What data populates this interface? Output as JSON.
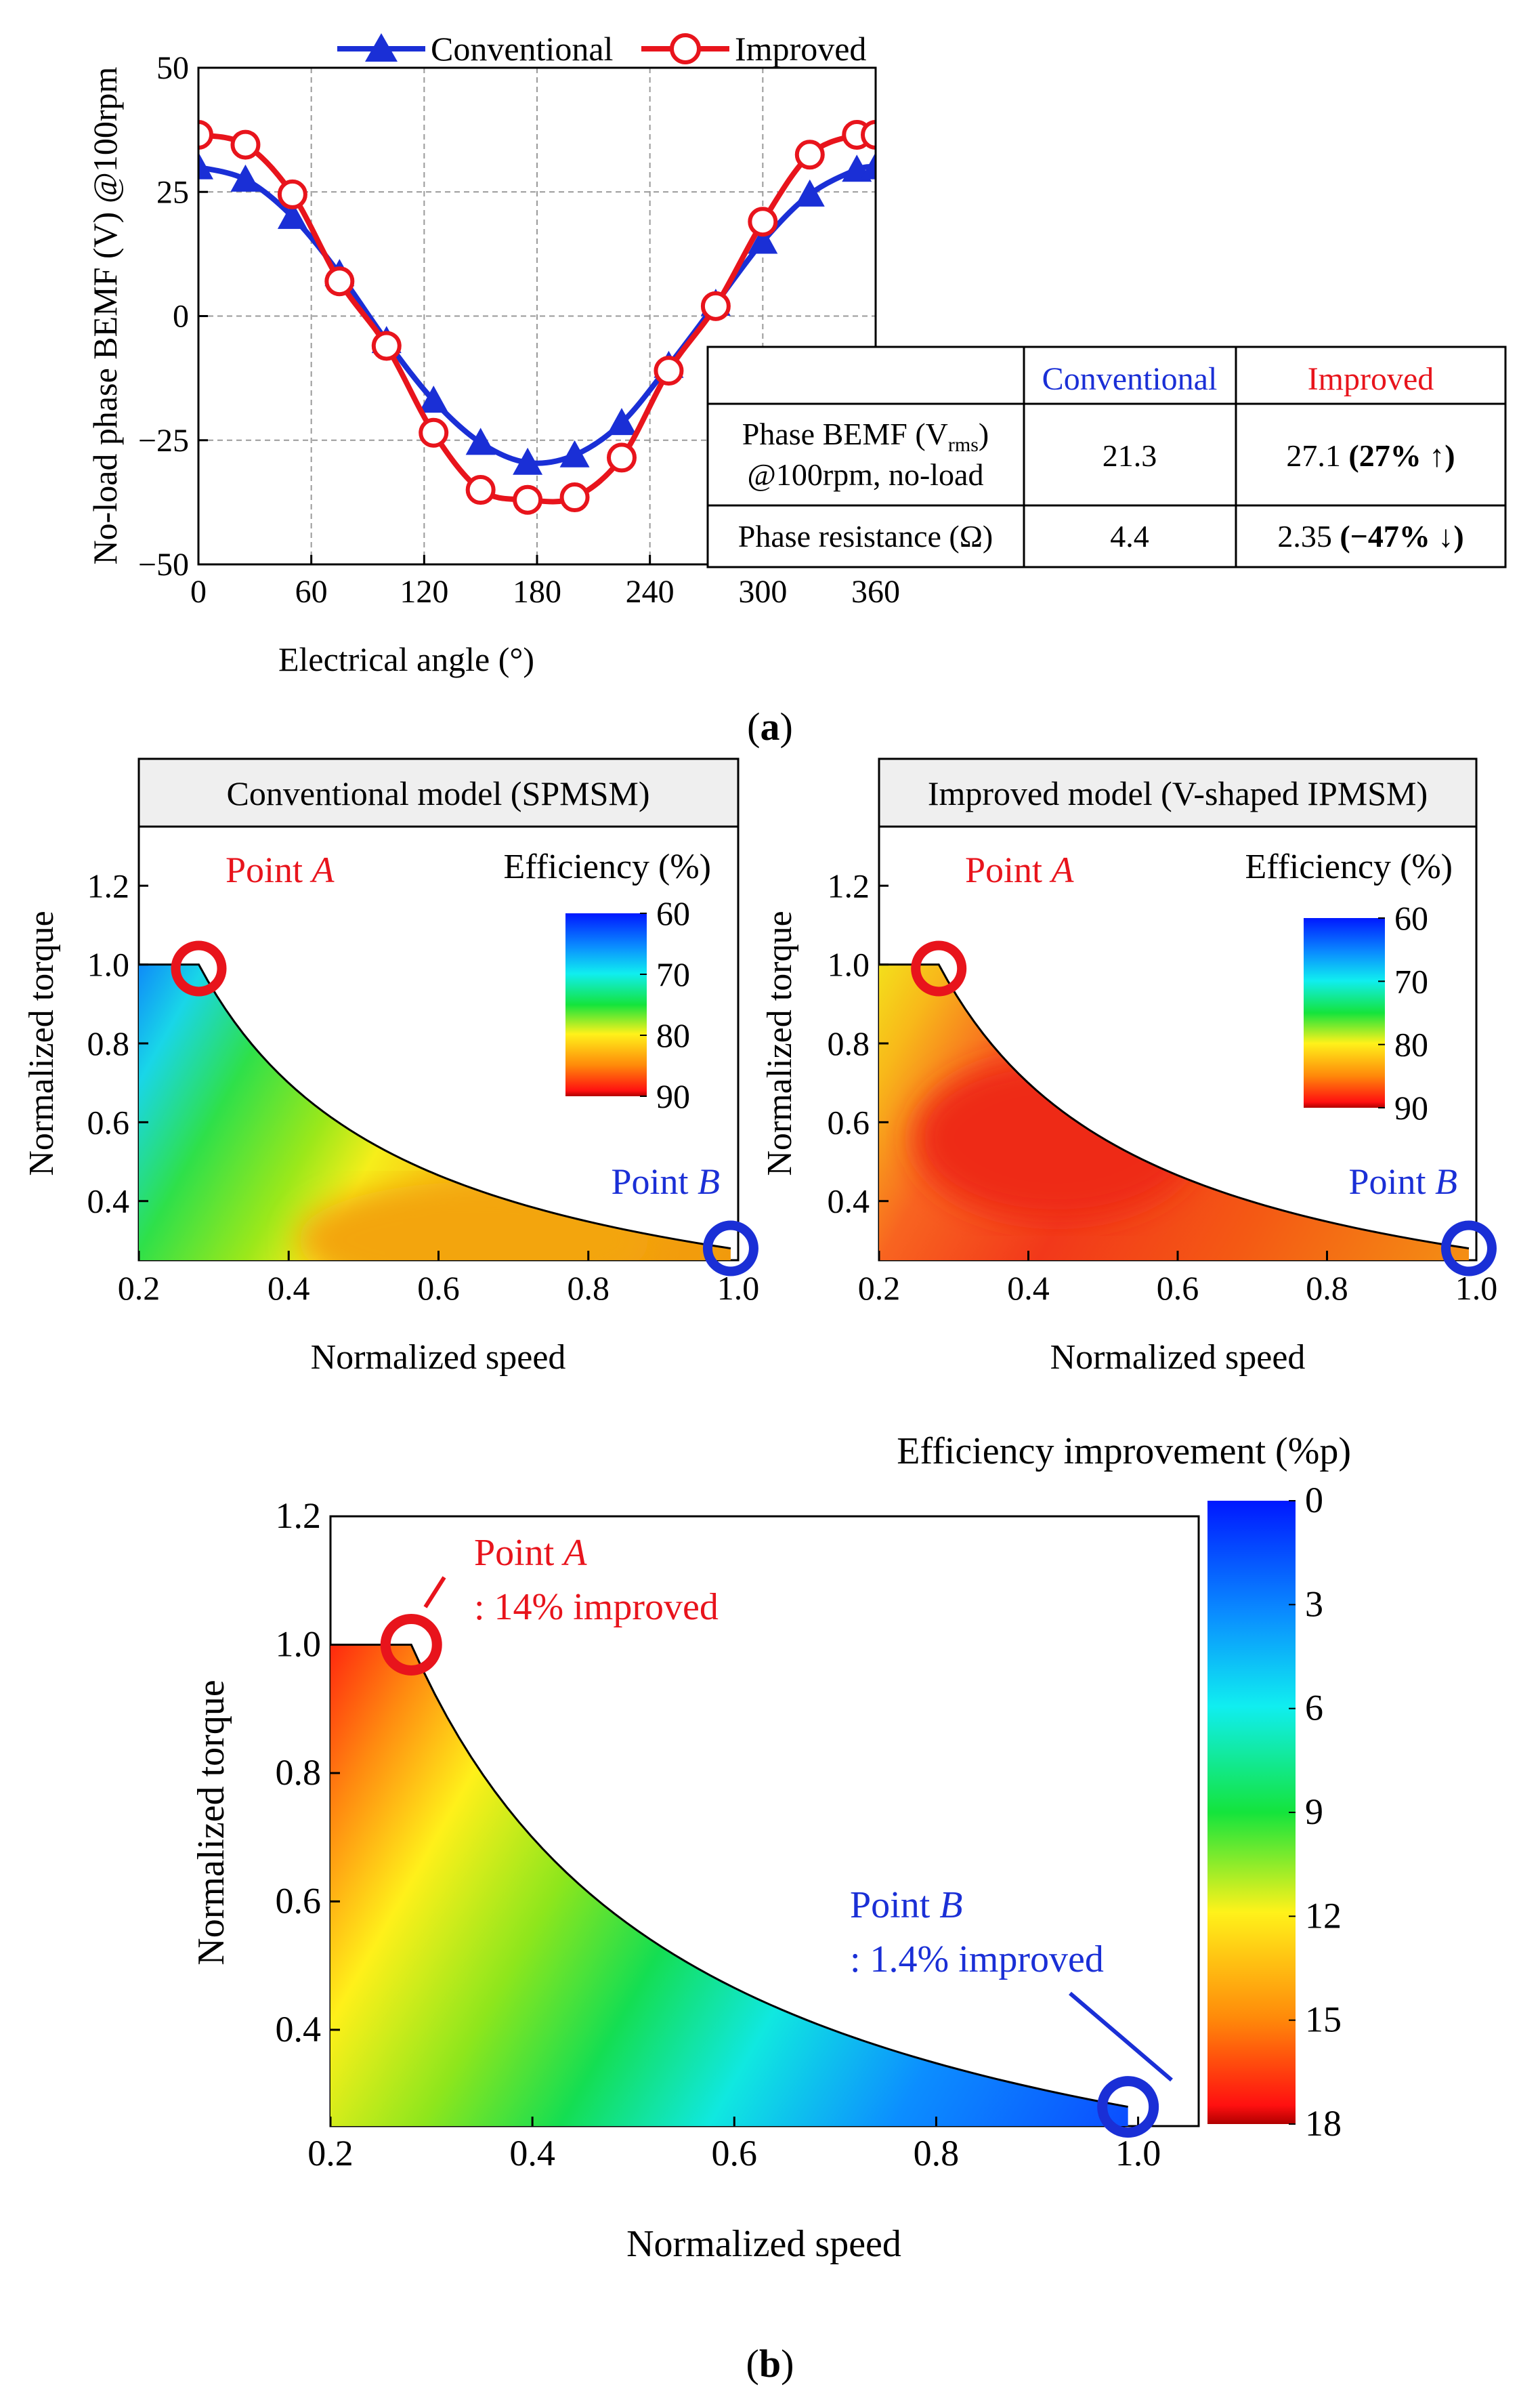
{
  "panel_labels": {
    "a": "a",
    "b": "b"
  },
  "colors": {
    "conventional": "#1a2fd6",
    "improved": "#e8141c",
    "grid": "#9a9a9a",
    "frame": "#000000",
    "title_box": "#efefef"
  },
  "bemf_table": {
    "header_conv": "Conventional",
    "header_impr": "Improved",
    "row1_label_a": "Phase BEMF (V",
    "row1_label_sub": "rms",
    "row1_label_b": ")",
    "row1_label_c": "@100rpm, no-load",
    "row1_conv": "21.3",
    "row1_impr_value": "27.1",
    "row1_impr_change": "(27% ↑)",
    "row2_label": "Phase resistance (Ω)",
    "row2_conv": "4.4",
    "row2_impr_value": "2.35",
    "row2_impr_change": "(−47% ↓)"
  },
  "chart_data": [
    {
      "type": "line",
      "title": "",
      "xlabel": "Electrical angle (°)",
      "ylabel": "No-load phase BEMF (V) @100rpm",
      "xlim": [
        0,
        360
      ],
      "ylim": [
        -50,
        50
      ],
      "xticks": [
        "0",
        "60",
        "120",
        "180",
        "240",
        "300",
        "360"
      ],
      "yticks": [
        "50",
        "25",
        "0",
        "−25",
        "−50"
      ],
      "grid": true,
      "legend": "top",
      "series": [
        {
          "name": "Conventional",
          "marker": "triangle",
          "x": [
            0,
            25,
            50,
            75,
            100,
            125,
            150,
            175,
            200,
            225,
            250,
            275,
            300,
            325,
            350,
            360
          ],
          "y": [
            30,
            27.5,
            20,
            8.5,
            -5,
            -17,
            -25.5,
            -29.5,
            -28,
            -21.5,
            -10,
            2.5,
            15,
            24.5,
            29.5,
            30
          ]
        },
        {
          "name": "Improved",
          "marker": "circle",
          "x": [
            0,
            25,
            50,
            75,
            100,
            125,
            150,
            175,
            200,
            225,
            250,
            275,
            300,
            325,
            350,
            360
          ],
          "y": [
            36.5,
            34.5,
            24.5,
            7,
            -6,
            -23.5,
            -35,
            -37,
            -36.5,
            -28.5,
            -11,
            2,
            19,
            32.5,
            36.5,
            36.5
          ]
        }
      ]
    },
    {
      "type": "heatmap",
      "title": "Conventional model (SPMSM)",
      "xlabel": "Normalized speed",
      "ylabel": "Normalized torque",
      "xlim": [
        0.2,
        1.0
      ],
      "ylim": [
        0.25,
        1.35
      ],
      "xticks": [
        "0.2",
        "0.4",
        "0.6",
        "0.8",
        "1.0"
      ],
      "yticks": [
        "1.2",
        "1.0",
        "0.8",
        "0.6",
        "0.4"
      ],
      "colorbar_title": "Efficiency (%)",
      "colorbar_ticks": [
        "60",
        "70",
        "80",
        "90"
      ],
      "colorbar_range": [
        60,
        90
      ],
      "point_a_label": "Point ",
      "point_a_letter": "A",
      "point_b_label": "Point ",
      "point_b_letter": "B",
      "point_a": [
        0.28,
        0.99
      ],
      "point_b": [
        0.99,
        0.28
      ]
    },
    {
      "type": "heatmap",
      "title": "Improved model (V-shaped IPMSM)",
      "xlabel": "Normalized speed",
      "ylabel": "Normalized torque",
      "xlim": [
        0.2,
        1.0
      ],
      "ylim": [
        0.25,
        1.35
      ],
      "xticks": [
        "0.2",
        "0.4",
        "0.6",
        "0.8",
        "1.0"
      ],
      "yticks": [
        "1.2",
        "1.0",
        "0.8",
        "0.6",
        "0.4"
      ],
      "colorbar_title": "Efficiency (%)",
      "colorbar_ticks": [
        "60",
        "70",
        "80",
        "90"
      ],
      "colorbar_range": [
        60,
        90
      ],
      "point_a_label": "Point ",
      "point_a_letter": "A",
      "point_b_label": "Point ",
      "point_b_letter": "B",
      "point_a": [
        0.28,
        0.99
      ],
      "point_b": [
        0.99,
        0.28
      ]
    },
    {
      "type": "heatmap",
      "title": "",
      "xlabel": "Normalized speed",
      "ylabel": "Normalized torque",
      "xlim": [
        0.2,
        1.06
      ],
      "ylim": [
        0.25,
        1.2
      ],
      "xticks": [
        "0.2",
        "0.4",
        "0.6",
        "0.8",
        "1.0"
      ],
      "yticks": [
        "1.2",
        "1.0",
        "0.8",
        "0.6",
        "0.4"
      ],
      "colorbar_title": "Efficiency improvement (%p)",
      "colorbar_ticks": [
        "0",
        "3",
        "6",
        "9",
        "12",
        "15",
        "18"
      ],
      "colorbar_range": [
        0,
        18
      ],
      "point_a_label": "Point ",
      "point_a_letter": "A",
      "point_a_note": ": 14% improved",
      "point_b_label": "Point ",
      "point_b_letter": "B",
      "point_b_note": ": 1.4% improved",
      "point_a": [
        0.28,
        1.0
      ],
      "point_b": [
        0.99,
        0.28
      ]
    }
  ]
}
